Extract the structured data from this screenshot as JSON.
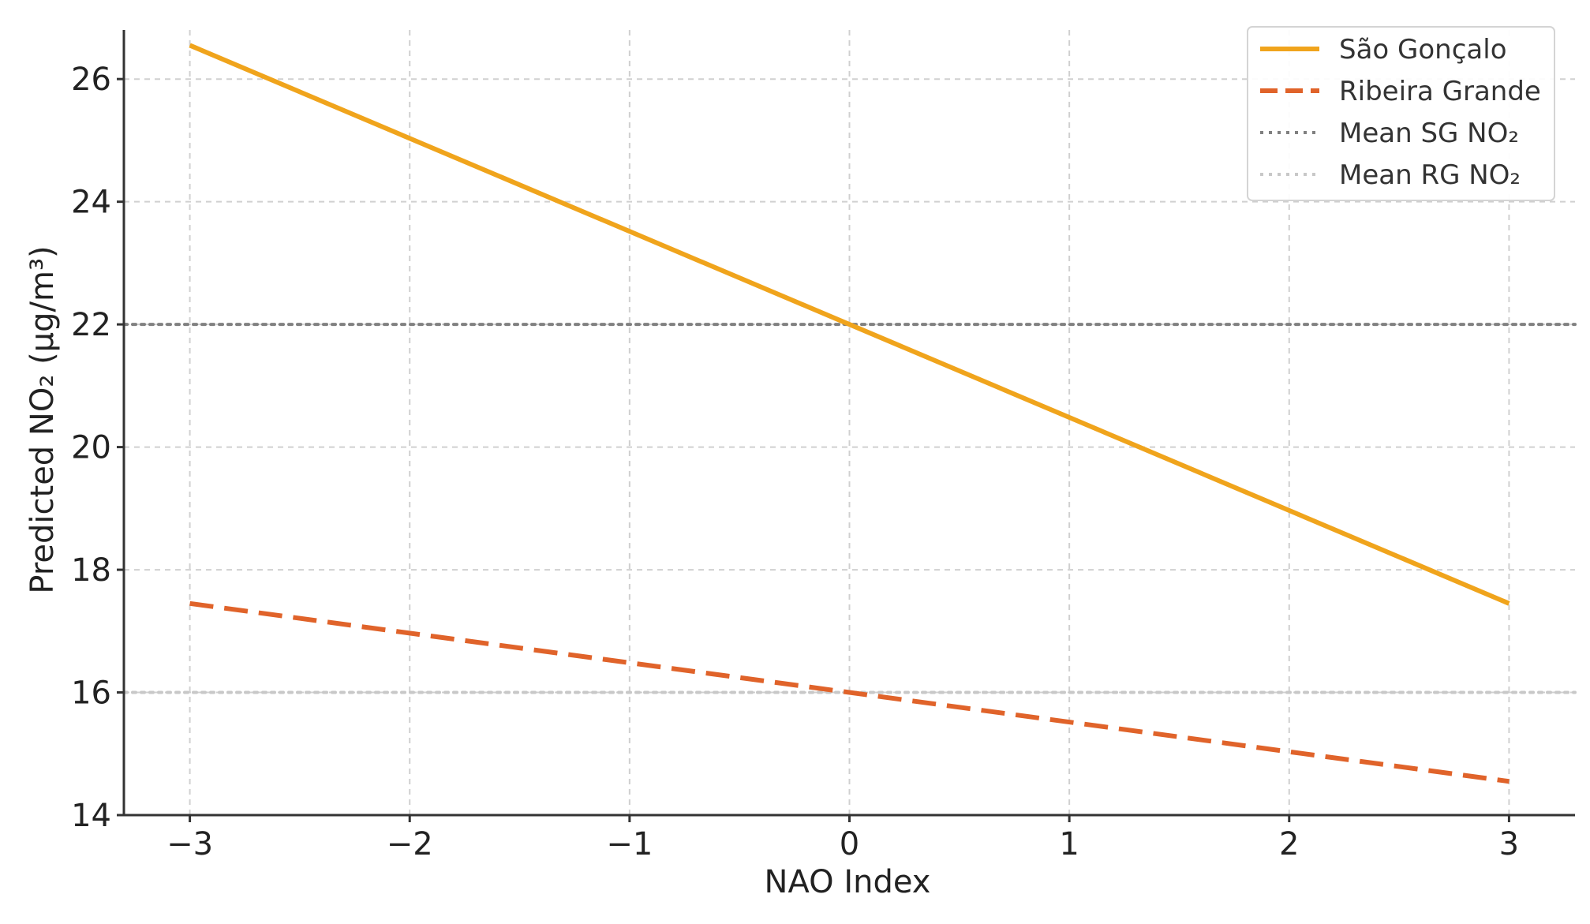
{
  "chart_data": {
    "type": "line",
    "title": "",
    "xlabel": "NAO Index",
    "ylabel": "Predicted NO₂ (µg/m³)",
    "xlim": [
      -3.3,
      3.3
    ],
    "ylim": [
      14,
      26.8
    ],
    "x_ticks": [
      -3,
      -2,
      -1,
      0,
      1,
      2,
      3
    ],
    "x_tick_labels": [
      "−3",
      "−2",
      "−1",
      "0",
      "1",
      "2",
      "3"
    ],
    "y_ticks": [
      14,
      16,
      18,
      20,
      22,
      24,
      26
    ],
    "y_tick_labels": [
      "14",
      "16",
      "18",
      "20",
      "22",
      "24",
      "26"
    ],
    "grid": true,
    "legend_position": "top-right",
    "series": [
      {
        "name": "São Gonçalo",
        "style": "solid",
        "color": "#f0a41c",
        "x": [
          -3,
          3
        ],
        "values": [
          26.55,
          17.45
        ]
      },
      {
        "name": "Ribeira Grande",
        "style": "dashed",
        "color": "#e0632a",
        "x": [
          -3,
          3
        ],
        "values": [
          17.45,
          14.55
        ]
      }
    ],
    "reference_lines": [
      {
        "name": "Mean SG NO₂",
        "style": "dotted",
        "color": "#808080",
        "y": 22
      },
      {
        "name": "Mean RG NO₂",
        "style": "dotted",
        "color": "#c8c8c8",
        "y": 16
      }
    ]
  }
}
